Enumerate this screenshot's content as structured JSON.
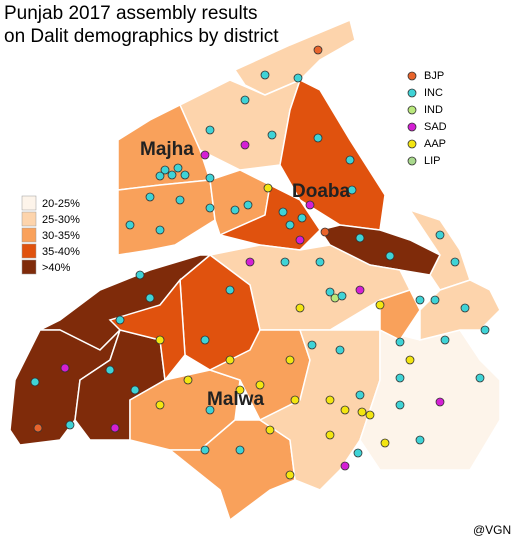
{
  "title": [
    "Punjab 2017 assembly results",
    "on Dalit demographics by district"
  ],
  "region_labels": [
    "Majha",
    "Doaba",
    "Malwa"
  ],
  "share_legend": [
    {
      "label": "20-25%",
      "color": "#fdf4ea"
    },
    {
      "label": "25-30%",
      "color": "#fdd4ac"
    },
    {
      "label": "30-35%",
      "color": "#f9a15b"
    },
    {
      "label": "35-40%",
      "color": "#e0520e"
    },
    {
      "label": ">40%",
      "color": "#7f2b0a"
    }
  ],
  "party_legend": [
    {
      "label": "BJP",
      "color": "#e8642c"
    },
    {
      "label": "INC",
      "color": "#3fd3d6"
    },
    {
      "label": "IND",
      "color": "#b9e87c"
    },
    {
      "label": "SAD",
      "color": "#d41fd4"
    },
    {
      "label": "AAP",
      "color": "#f3e511"
    },
    {
      "label": "LIP",
      "color": "#a9d98d"
    }
  ],
  "credit": "@VGN"
}
